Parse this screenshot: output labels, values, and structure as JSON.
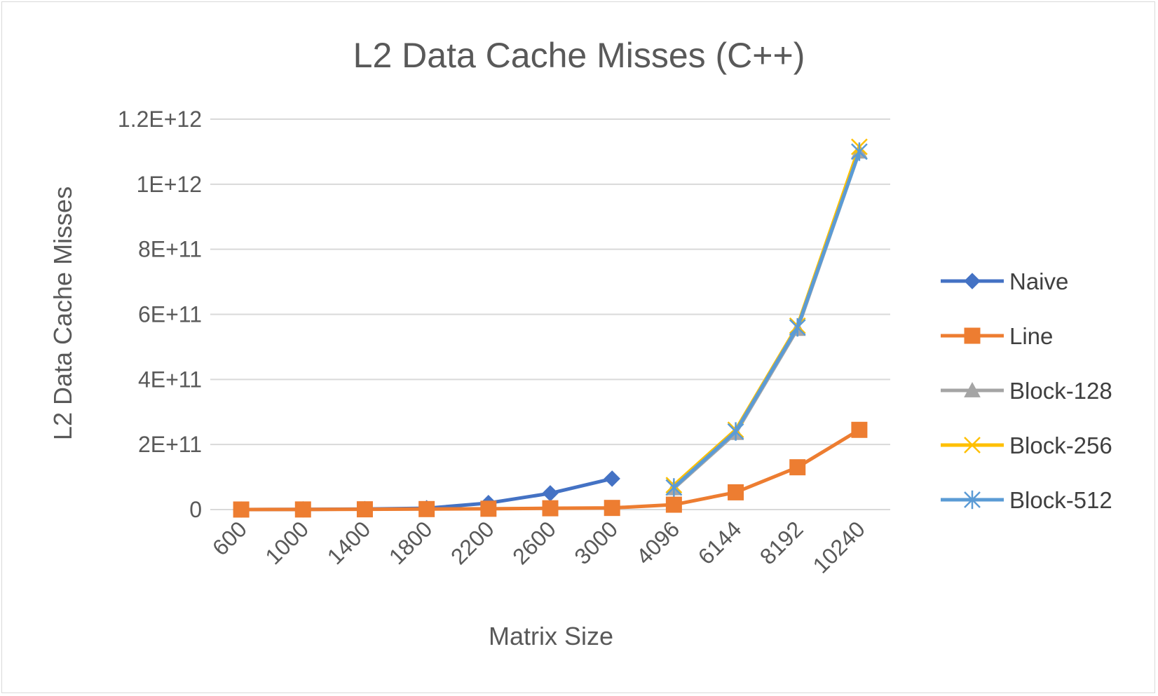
{
  "chart_data": {
    "type": "line",
    "title": "L2 Data Cache Misses (C++)",
    "xlabel": "Matrix Size",
    "ylabel": "L2 Data Cache Misses",
    "categories": [
      "600",
      "1000",
      "1400",
      "1800",
      "2200",
      "2600",
      "3000",
      "4096",
      "6144",
      "8192",
      "10240"
    ],
    "ylim": [
      0,
      1200000000000.0
    ],
    "yticks": [
      {
        "value": 0,
        "label": "0"
      },
      {
        "value": 200000000000.0,
        "label": "2E+11"
      },
      {
        "value": 400000000000.0,
        "label": "4E+11"
      },
      {
        "value": 600000000000.0,
        "label": "6E+11"
      },
      {
        "value": 800000000000.0,
        "label": "8E+11"
      },
      {
        "value": 1000000000000.0,
        "label": "1E+12"
      },
      {
        "value": 1200000000000.0,
        "label": "1.2E+12"
      }
    ],
    "grid": true,
    "legend_position": "right",
    "series": [
      {
        "name": "Naive",
        "color": "#4472c4",
        "marker": "diamond",
        "values": [
          100000000,
          500000000,
          1500000000,
          4000000000,
          20000000000,
          50000000000,
          95000000000,
          null,
          null,
          null,
          null
        ]
      },
      {
        "name": "Line",
        "color": "#ed7d31",
        "marker": "square",
        "values": [
          100000000,
          300000000,
          800000000,
          1500000000,
          2500000000,
          4000000000,
          5000000000,
          15000000000,
          53000000000,
          130000000000,
          245000000000
        ]
      },
      {
        "name": "Block-128",
        "color": "#a5a5a5",
        "marker": "triangle",
        "values": [
          null,
          null,
          null,
          null,
          null,
          null,
          null,
          65000000000,
          235000000000,
          555000000000,
          1100000000000
        ]
      },
      {
        "name": "Block-256",
        "color": "#ffc000",
        "marker": "x",
        "values": [
          null,
          null,
          null,
          null,
          null,
          null,
          null,
          75000000000,
          245000000000,
          565000000000,
          1115000000000
        ]
      },
      {
        "name": "Block-512",
        "color": "#5b9bd5",
        "marker": "asterisk",
        "values": [
          null,
          null,
          null,
          null,
          null,
          null,
          null,
          68000000000,
          240000000000,
          560000000000,
          1100000000000
        ]
      }
    ]
  }
}
